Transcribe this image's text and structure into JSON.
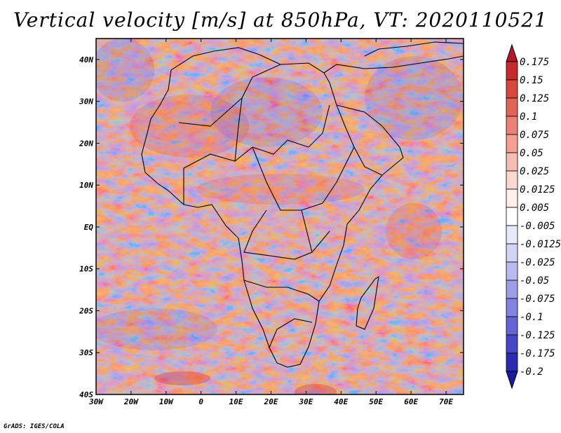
{
  "title": "Vertical velocity [m/s] at 850hPa, VT: 2020110521",
  "credit": "GrADS: IGES/COLA",
  "map": {
    "region": "Africa",
    "lon_range": [
      -30,
      75
    ],
    "lat_range": [
      -40,
      45
    ],
    "lat_ticks": [
      {
        "value": 40,
        "label": "40N"
      },
      {
        "value": 30,
        "label": "30N"
      },
      {
        "value": 20,
        "label": "20N"
      },
      {
        "value": 10,
        "label": "10N"
      },
      {
        "value": 0,
        "label": "EQ"
      },
      {
        "value": -10,
        "label": "10S"
      },
      {
        "value": -20,
        "label": "20S"
      },
      {
        "value": -30,
        "label": "30S"
      },
      {
        "value": -40,
        "label": "40S"
      }
    ],
    "lon_ticks": [
      {
        "value": -30,
        "label": "30W"
      },
      {
        "value": -20,
        "label": "20W"
      },
      {
        "value": -10,
        "label": "10W"
      },
      {
        "value": 0,
        "label": "0"
      },
      {
        "value": 10,
        "label": "10E"
      },
      {
        "value": 20,
        "label": "20E"
      },
      {
        "value": 30,
        "label": "30E"
      },
      {
        "value": 40,
        "label": "40E"
      },
      {
        "value": 50,
        "label": "50E"
      },
      {
        "value": 60,
        "label": "60E"
      },
      {
        "value": 70,
        "label": "70E"
      }
    ]
  },
  "colorbar": {
    "entries": [
      {
        "label": "0.175",
        "color": "#b2182b"
      },
      {
        "label": "0.15",
        "color": "#c62a2e"
      },
      {
        "label": "0.125",
        "color": "#d6473f"
      },
      {
        "label": "0.1",
        "color": "#e26458"
      },
      {
        "label": "0.075",
        "color": "#ec8277"
      },
      {
        "label": "0.05",
        "color": "#f3a093"
      },
      {
        "label": "0.025",
        "color": "#f8bdb2"
      },
      {
        "label": "0.0125",
        "color": "#fcd7cf"
      },
      {
        "label": "0.005",
        "color": "#ffeeea"
      },
      {
        "label": "-0.005",
        "color": "#ffffff"
      },
      {
        "label": "-0.0125",
        "color": "#e9e9fb"
      },
      {
        "label": "-0.025",
        "color": "#d3d3f5"
      },
      {
        "label": "-0.05",
        "color": "#babaf0"
      },
      {
        "label": "-0.075",
        "color": "#9e9ee8"
      },
      {
        "label": "-0.1",
        "color": "#8282e0"
      },
      {
        "label": "-0.125",
        "color": "#6464d6"
      },
      {
        "label": "-0.175",
        "color": "#4646c8"
      },
      {
        "label": "-0.2",
        "color": "#2a2ab2"
      }
    ],
    "top_color": "#b2182b",
    "bottom_color": "#1a1a9c"
  }
}
